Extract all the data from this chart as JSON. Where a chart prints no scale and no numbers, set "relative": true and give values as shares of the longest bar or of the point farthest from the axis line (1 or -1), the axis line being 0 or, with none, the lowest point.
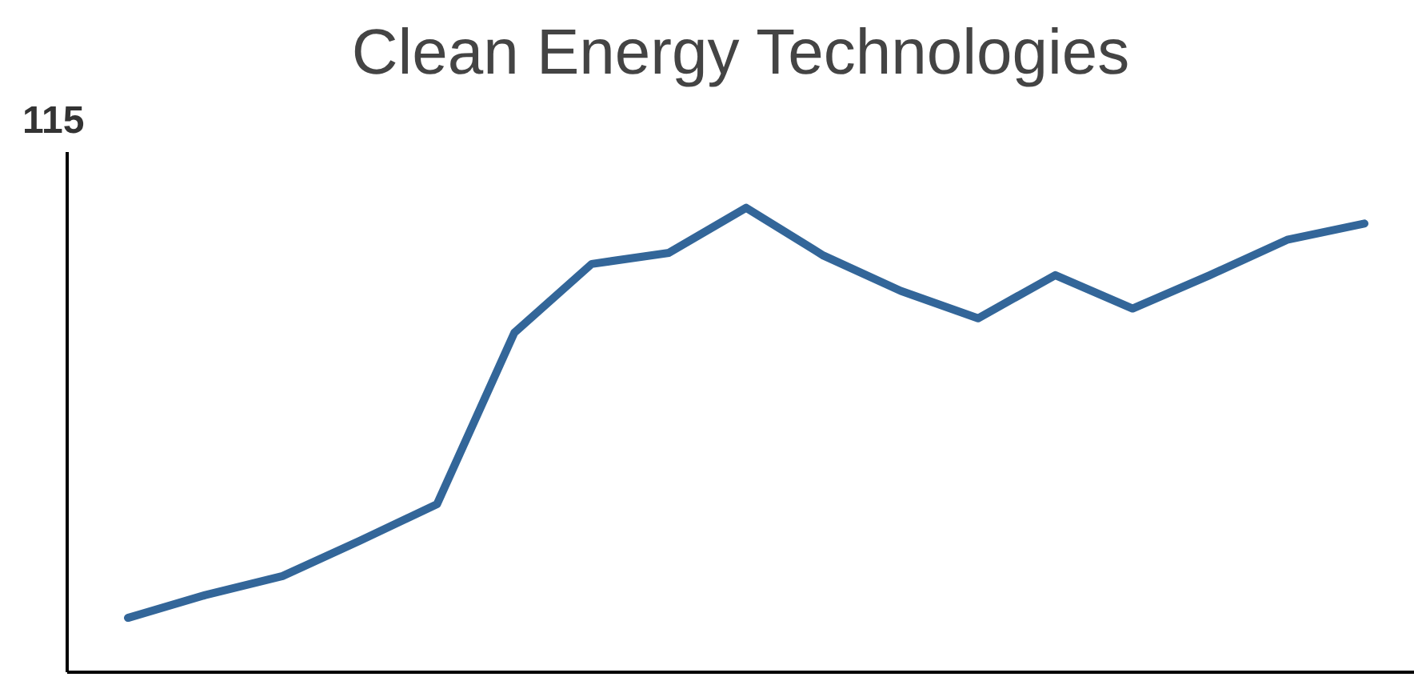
{
  "chart_data": {
    "type": "line",
    "title": "Clean Energy Technologies",
    "relative": true,
    "annotations": [
      "115"
    ],
    "categories": [
      null,
      null,
      null,
      null,
      null,
      null,
      null,
      null,
      null,
      null,
      null,
      null,
      null,
      null,
      null,
      null,
      null
    ],
    "series": [
      {
        "color": "#336699",
        "values": [
          0.117,
          0.166,
          0.207,
          0.283,
          0.362,
          0.731,
          0.879,
          0.903,
          1,
          0.897,
          0.821,
          0.762,
          0.855,
          0.783,
          0.855,
          0.931,
          0.966
        ]
      }
    ],
    "grid": false,
    "legend": false,
    "marker": "none",
    "line_style": "solid"
  }
}
